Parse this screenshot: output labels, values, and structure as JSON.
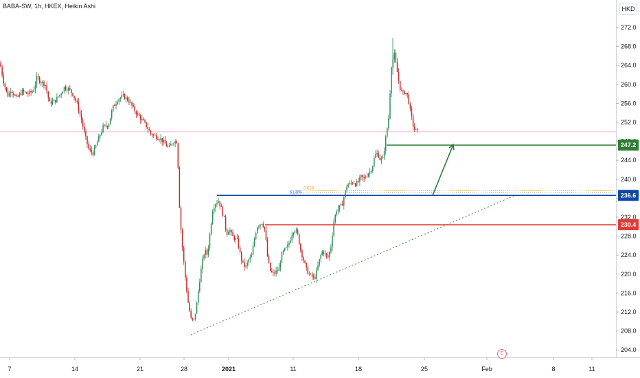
{
  "header": {
    "symbol_line": "BABA-SW, 1h, HKEX, Heikin Ashi",
    "currency": "HKD",
    "earnings_marker": "E"
  },
  "colors": {
    "up": "#26a69a",
    "up_candle": "#2e8b57",
    "down": "#c62828",
    "level_green": "#2e7d32",
    "level_blue": "#0d47a1",
    "level_red": "#e53935",
    "trendline": "#388e3c",
    "fib_orange": "#f4a226",
    "fib_gray": "#9e9e9e",
    "price_line": "#f8bbd0"
  },
  "chart_data": {
    "type": "candlestick",
    "style": "Heikin Ashi",
    "symbol": "BABA-SW",
    "interval": "1h",
    "exchange": "HKEX",
    "currency": "HKD",
    "y_range": [
      202,
      274
    ],
    "y_ticks": [
      204.0,
      208.0,
      212.0,
      216.0,
      220.0,
      224.0,
      228.0,
      232.0,
      236.0,
      240.0,
      244.0,
      248.0,
      252.0,
      256.0,
      260.0,
      264.0,
      268.0,
      272.0
    ],
    "x_ticks": [
      {
        "label": "7",
        "bold": false
      },
      {
        "label": "14",
        "bold": false
      },
      {
        "label": "21",
        "bold": false
      },
      {
        "label": "28",
        "bold": false
      },
      {
        "label": "2021",
        "bold": true
      },
      {
        "label": "11",
        "bold": false
      },
      {
        "label": "18",
        "bold": false
      },
      {
        "label": "25",
        "bold": false
      },
      {
        "label": "Feb",
        "bold": false
      },
      {
        "label": "8",
        "bold": false
      },
      {
        "label": "11",
        "bold": false
      }
    ],
    "price_path": [
      [
        0,
        264.5
      ],
      [
        6,
        260
      ],
      [
        12,
        257.5
      ],
      [
        16,
        259
      ],
      [
        24,
        257
      ],
      [
        32,
        258.5
      ],
      [
        40,
        258
      ],
      [
        48,
        258.5
      ],
      [
        54,
        261.5
      ],
      [
        60,
        260.5
      ],
      [
        66,
        260
      ],
      [
        72,
        256
      ],
      [
        80,
        256.5
      ],
      [
        88,
        258
      ],
      [
        94,
        259.5
      ],
      [
        100,
        259
      ],
      [
        106,
        258
      ],
      [
        112,
        256
      ],
      [
        118,
        253
      ],
      [
        124,
        249
      ],
      [
        130,
        246
      ],
      [
        136,
        245.5
      ],
      [
        142,
        248
      ],
      [
        150,
        251
      ],
      [
        158,
        251.5
      ],
      [
        164,
        255
      ],
      [
        172,
        257
      ],
      [
        180,
        257.5
      ],
      [
        188,
        256.5
      ],
      [
        196,
        254.5
      ],
      [
        204,
        253
      ],
      [
        212,
        251.5
      ],
      [
        220,
        249.5
      ],
      [
        228,
        249
      ],
      [
        234,
        248.5
      ],
      [
        240,
        247.5
      ],
      [
        246,
        246.5
      ],
      [
        252,
        248
      ],
      [
        258,
        248
      ],
      [
        262,
        232
      ],
      [
        266,
        225
      ],
      [
        270,
        219
      ],
      [
        274,
        214
      ],
      [
        278,
        210.5
      ],
      [
        282,
        210
      ],
      [
        286,
        213
      ],
      [
        290,
        218
      ],
      [
        294,
        222
      ],
      [
        298,
        225
      ],
      [
        302,
        224
      ],
      [
        306,
        229
      ],
      [
        310,
        234
      ],
      [
        314,
        235
      ],
      [
        318,
        235.5
      ],
      [
        322,
        234
      ],
      [
        326,
        232
      ],
      [
        330,
        228.5
      ],
      [
        334,
        229.5
      ],
      [
        338,
        228
      ],
      [
        342,
        227.5
      ],
      [
        346,
        227
      ],
      [
        350,
        224
      ],
      [
        354,
        222
      ],
      [
        358,
        221.5
      ],
      [
        362,
        223
      ],
      [
        366,
        223.5
      ],
      [
        370,
        227
      ],
      [
        374,
        230
      ],
      [
        378,
        230.5
      ],
      [
        382,
        231
      ],
      [
        386,
        229
      ],
      [
        390,
        223
      ],
      [
        394,
        220.5
      ],
      [
        398,
        220
      ],
      [
        402,
        220.5
      ],
      [
        406,
        221
      ],
      [
        410,
        224
      ],
      [
        414,
        225
      ],
      [
        418,
        225.5
      ],
      [
        422,
        227
      ],
      [
        426,
        229
      ],
      [
        430,
        229.5
      ],
      [
        434,
        228
      ],
      [
        438,
        225
      ],
      [
        442,
        223
      ],
      [
        446,
        221
      ],
      [
        450,
        220
      ],
      [
        454,
        219.5
      ],
      [
        458,
        219
      ],
      [
        462,
        221
      ],
      [
        466,
        223.5
      ],
      [
        470,
        225
      ],
      [
        474,
        224
      ],
      [
        478,
        223.5
      ],
      [
        482,
        226
      ],
      [
        486,
        231
      ],
      [
        490,
        233.5
      ],
      [
        494,
        234
      ],
      [
        498,
        234.5
      ],
      [
        502,
        237
      ],
      [
        506,
        239
      ],
      [
        510,
        239
      ],
      [
        514,
        239.5
      ],
      [
        518,
        239
      ],
      [
        522,
        239.5
      ],
      [
        526,
        240.5
      ],
      [
        530,
        240
      ],
      [
        534,
        241
      ],
      [
        538,
        241.5
      ],
      [
        542,
        242.5
      ],
      [
        546,
        245
      ],
      [
        550,
        245.5
      ],
      [
        554,
        244
      ],
      [
        558,
        244.5
      ],
      [
        562,
        249
      ],
      [
        566,
        253
      ],
      [
        570,
        264
      ],
      [
        574,
        266.5
      ],
      [
        578,
        263
      ],
      [
        582,
        259.5
      ],
      [
        586,
        258
      ],
      [
        590,
        258.5
      ],
      [
        594,
        257.5
      ],
      [
        598,
        254
      ],
      [
        602,
        251
      ],
      [
        606,
        250
      ],
      [
        610,
        250.5
      ]
    ],
    "levels": [
      {
        "name": "target",
        "value": 247.2,
        "label": "247.2",
        "color_key": "level_green"
      },
      {
        "name": "support-blue",
        "value": 236.6,
        "label": "236.6",
        "color_key": "level_blue"
      },
      {
        "name": "support-red",
        "value": 230.4,
        "label": "230.4",
        "color_key": "level_red"
      }
    ],
    "fib_levels": [
      {
        "value": 237.6,
        "label": "0.618"
      },
      {
        "value": 237.2,
        "label": ""
      }
    ],
    "fib_label_blue": "61.8%",
    "trendline": {
      "from": {
        "x": 278,
        "y": 207.2
      },
      "to": {
        "x": 750,
        "y": 236.6
      }
    },
    "projection_arrow": {
      "from": {
        "x": 630,
        "y": 236.6
      },
      "to": {
        "x": 660,
        "y": 247.3
      }
    },
    "current_price": 250.0
  }
}
